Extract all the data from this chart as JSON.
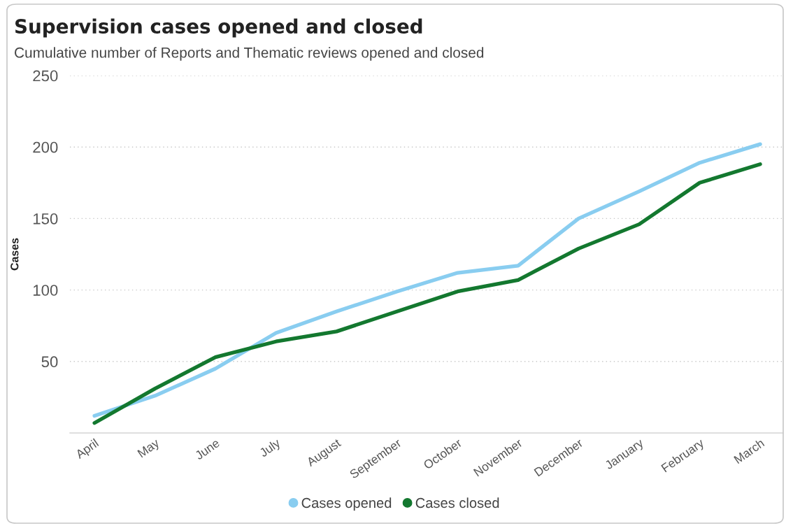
{
  "chart_data": {
    "type": "line",
    "title": "Supervision cases opened and closed",
    "subtitle": "Cumulative number of Reports and Thematic reviews opened and closed",
    "ylabel": "Cases",
    "categories": [
      "April",
      "May",
      "June",
      "July",
      "August",
      "September",
      "October",
      "November",
      "December",
      "January",
      "February",
      "March"
    ],
    "series": [
      {
        "name": "Cases opened",
        "color": "#89cdf0",
        "values": [
          12,
          26,
          45,
          70,
          85,
          99,
          112,
          117,
          150,
          169,
          189,
          202
        ]
      },
      {
        "name": "Cases closed",
        "color": "#13782f",
        "values": [
          7,
          31,
          53,
          64,
          71,
          85,
          99,
          107,
          129,
          146,
          175,
          188
        ]
      }
    ],
    "ylim": [
      0,
      250
    ],
    "yticks": [
      50,
      100,
      150,
      200,
      250
    ],
    "grid": "y",
    "legend": "bottom",
    "line_style": "solid"
  }
}
